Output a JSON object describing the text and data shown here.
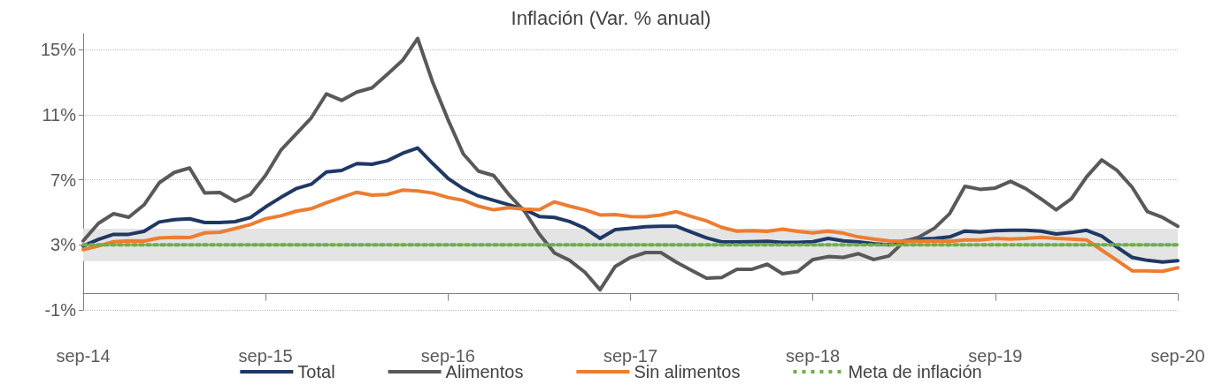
{
  "chart_data": {
    "type": "line",
    "title": "Inflación (Var. % anual)",
    "categories": [
      "sep-14",
      null,
      null,
      null,
      null,
      null,
      null,
      null,
      null,
      null,
      null,
      null,
      "sep-15",
      null,
      null,
      null,
      null,
      null,
      null,
      null,
      null,
      null,
      null,
      null,
      "sep-16",
      null,
      null,
      null,
      null,
      null,
      null,
      null,
      null,
      null,
      null,
      null,
      "sep-17",
      null,
      null,
      null,
      null,
      null,
      null,
      null,
      null,
      null,
      null,
      null,
      "sep-18",
      null,
      null,
      null,
      null,
      null,
      null,
      null,
      null,
      null,
      null,
      null,
      "sep-19",
      null,
      null,
      null,
      null,
      null,
      null,
      null,
      null,
      null,
      null,
      null,
      "sep-20"
    ],
    "series": [
      {
        "name": "Total",
        "color": "#1f3864",
        "values": [
          2.93,
          3.34,
          3.65,
          3.65,
          3.83,
          4.41,
          4.55,
          4.61,
          4.38,
          4.38,
          4.43,
          4.68,
          5.34,
          5.92,
          6.46,
          6.73,
          7.49,
          7.58,
          8.0,
          7.96,
          8.17,
          8.63,
          8.96,
          8.0,
          7.09,
          6.46,
          6.01,
          5.74,
          5.47,
          5.2,
          4.75,
          4.69,
          4.44,
          4.03,
          3.4,
          3.94,
          4.03,
          4.12,
          4.15,
          4.15,
          3.79,
          3.43,
          3.18,
          3.18,
          3.2,
          3.22,
          3.16,
          3.16,
          3.2,
          3.4,
          3.25,
          3.18,
          3.07,
          3.0,
          3.25,
          3.36,
          3.4,
          3.49,
          3.85,
          3.79,
          3.88,
          3.9,
          3.9,
          3.85,
          3.67,
          3.76,
          3.9,
          3.54,
          2.86,
          2.23,
          2.05,
          1.95,
          2.03
        ]
      },
      {
        "name": "Alimentos",
        "color": "#595959",
        "values": [
          3.25,
          4.32,
          4.92,
          4.7,
          5.46,
          6.82,
          7.46,
          7.73,
          6.19,
          6.22,
          5.68,
          6.1,
          7.28,
          8.82,
          9.81,
          10.81,
          12.29,
          11.89,
          12.4,
          12.66,
          13.49,
          14.34,
          15.7,
          12.98,
          10.7,
          8.6,
          7.54,
          7.27,
          6.1,
          5.11,
          3.67,
          2.5,
          2.05,
          1.32,
          0.24,
          1.68,
          2.23,
          2.53,
          2.53,
          1.95,
          1.45,
          0.96,
          1.0,
          1.5,
          1.5,
          1.81,
          1.23,
          1.36,
          2.1,
          2.28,
          2.23,
          2.46,
          2.1,
          2.32,
          3.22,
          3.49,
          4.03,
          4.93,
          6.6,
          6.42,
          6.5,
          6.91,
          6.46,
          5.83,
          5.16,
          5.83,
          7.18,
          8.23,
          7.59,
          6.55,
          5.05,
          4.69,
          4.15
        ]
      },
      {
        "name": "Sin alimentos",
        "color": "#ed7d31",
        "values": [
          2.71,
          2.93,
          3.2,
          3.25,
          3.24,
          3.43,
          3.47,
          3.45,
          3.74,
          3.78,
          4.01,
          4.25,
          4.61,
          4.79,
          5.07,
          5.23,
          5.59,
          5.92,
          6.24,
          6.06,
          6.1,
          6.37,
          6.32,
          6.19,
          5.92,
          5.74,
          5.38,
          5.16,
          5.29,
          5.2,
          5.16,
          5.65,
          5.38,
          5.16,
          4.84,
          4.87,
          4.75,
          4.73,
          4.84,
          5.05,
          4.75,
          4.48,
          4.08,
          3.85,
          3.88,
          3.83,
          3.97,
          3.83,
          3.74,
          3.85,
          3.72,
          3.49,
          3.36,
          3.25,
          3.22,
          3.22,
          3.25,
          3.22,
          3.31,
          3.31,
          3.4,
          3.36,
          3.4,
          3.47,
          3.4,
          3.36,
          3.31,
          2.68,
          2.05,
          1.41,
          1.41,
          1.38,
          1.59
        ]
      },
      {
        "name": "Meta de inflación",
        "color": "#70ad47",
        "line_style": "dotted",
        "values": [
          3,
          3,
          3,
          3,
          3,
          3,
          3,
          3,
          3,
          3,
          3,
          3,
          3,
          3,
          3,
          3,
          3,
          3,
          3,
          3,
          3,
          3,
          3,
          3,
          3,
          3,
          3,
          3,
          3,
          3,
          3,
          3,
          3,
          3,
          3,
          3,
          3,
          3,
          3,
          3,
          3,
          3,
          3,
          3,
          3,
          3,
          3,
          3,
          3,
          3,
          3,
          3,
          3,
          3,
          3,
          3,
          3,
          3,
          3,
          3,
          3,
          3,
          3,
          3,
          3,
          3,
          3,
          3,
          3,
          3,
          3,
          3,
          3
        ]
      }
    ],
    "bands": [
      {
        "axis": "y",
        "from": 2,
        "to": 4,
        "color": "#e4e4e4"
      }
    ],
    "ylim": [
      -1,
      16
    ],
    "yticks": [
      {
        "value": -1,
        "label": "-1%"
      },
      {
        "value": 3,
        "label": "3%"
      },
      {
        "value": 7,
        "label": "7%"
      },
      {
        "value": 11,
        "label": "11%"
      },
      {
        "value": 15,
        "label": "15%"
      }
    ],
    "grid": "y",
    "legend": "bottom",
    "marker": "none",
    "line_style": "solid"
  }
}
